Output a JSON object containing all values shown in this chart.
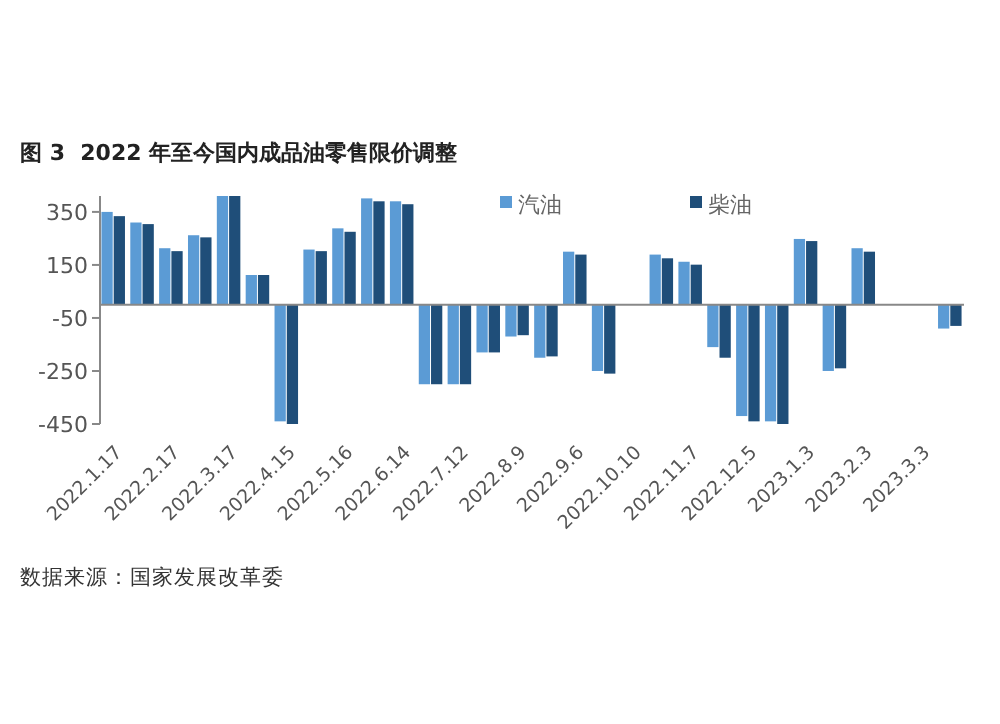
{
  "chart_data": {
    "type": "bar",
    "title": "图 3  2022 年至今国内成品油零售限价调整",
    "categories": [
      "2022.1.17",
      null,
      "2022.2.17",
      null,
      "2022.3.17",
      null,
      "2022.4.15",
      null,
      "2022.5.16",
      null,
      "2022.6.14",
      null,
      "2022.7.12",
      null,
      "2022.8.9",
      null,
      "2022.9.6",
      null,
      "2022.10.10",
      null,
      "2022.11.7",
      null,
      "2022.12.5",
      null,
      "2023.1.3",
      null,
      "2023.2.3",
      null,
      "2023.3.3",
      null
    ],
    "series": [
      {
        "name": "汽油",
        "color": "#5b9bd5",
        "values": [
          350,
          310,
          213,
          262,
          410,
          112,
          -440,
          208,
          288,
          401,
          390,
          -300,
          -300,
          -180,
          -120,
          -200,
          200,
          -250,
          0,
          189,
          162,
          -160,
          -420,
          -440,
          248,
          -250,
          213,
          0,
          0,
          -90
        ]
      },
      {
        "name": "柴油",
        "color": "#1f4e79",
        "values": [
          334,
          304,
          202,
          254,
          410,
          112,
          -450,
          202,
          275,
          390,
          379,
          -300,
          -300,
          -180,
          -115,
          -195,
          189,
          -260,
          0,
          175,
          151,
          -200,
          -440,
          -450,
          240,
          -240,
          200,
          0,
          0,
          -80
        ]
      }
    ],
    "ylim": [
      -450,
      410
    ],
    "yticks": [
      -450,
      -250,
      -50,
      150,
      350
    ],
    "grid": false,
    "legend": "top right",
    "annotations": [
      "数据来源：国家发展改革委"
    ]
  }
}
